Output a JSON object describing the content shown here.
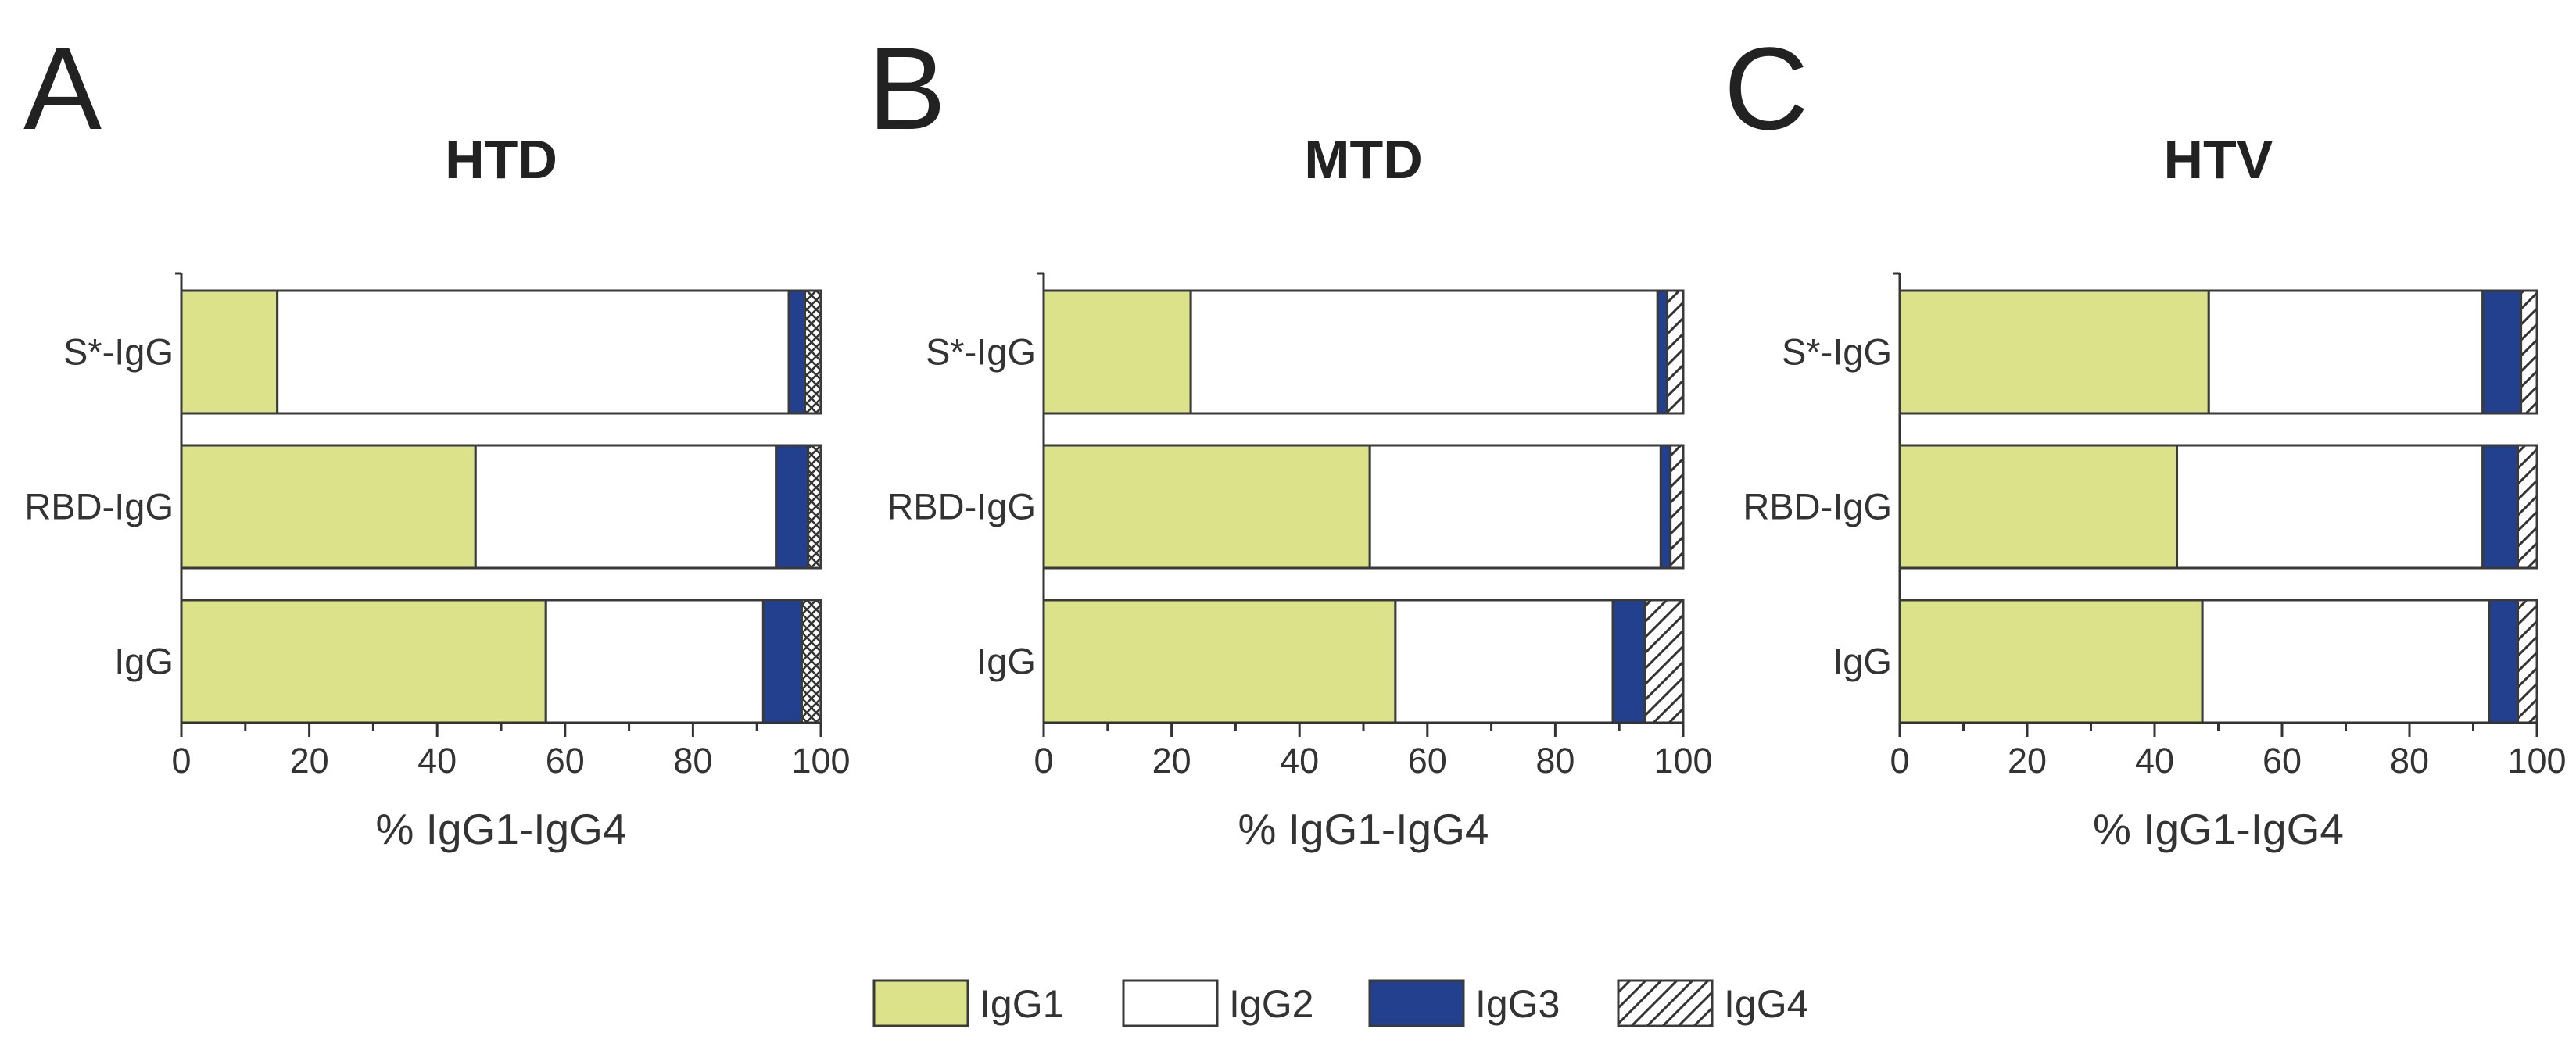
{
  "colors": {
    "IgG1": "#dbe28a",
    "IgG2": "#ffffff",
    "IgG3": "#23408e",
    "outline": "#3a3a3a"
  },
  "legend": {
    "items": [
      {
        "label": "IgG1",
        "fill": "IgG1"
      },
      {
        "label": "IgG2",
        "fill": "IgG2"
      },
      {
        "label": "IgG3",
        "fill": "IgG3"
      },
      {
        "label": "IgG4",
        "fill": "hatch"
      }
    ]
  },
  "chart_data": [
    {
      "panel": "A",
      "type": "bar",
      "stacked": true,
      "orientation": "horizontal",
      "title": "HTD",
      "xlabel": "% IgG1-IgG4",
      "xlim": [
        0,
        100
      ],
      "xticks": [
        0,
        20,
        40,
        60,
        80,
        100
      ],
      "ig4_pattern": "crosshatch",
      "categories": [
        "S*-IgG",
        "RBD-IgG",
        "IgG"
      ],
      "series": [
        {
          "name": "IgG1",
          "values": [
            15,
            46,
            57
          ]
        },
        {
          "name": "IgG2",
          "values": [
            80,
            47,
            34
          ]
        },
        {
          "name": "IgG3",
          "values": [
            2.5,
            5,
            6
          ]
        },
        {
          "name": "IgG4",
          "values": [
            2.5,
            2,
            3
          ]
        }
      ]
    },
    {
      "panel": "B",
      "type": "bar",
      "stacked": true,
      "orientation": "horizontal",
      "title": "MTD",
      "xlabel": "% IgG1-IgG4",
      "xlim": [
        0,
        100
      ],
      "xticks": [
        0,
        20,
        40,
        60,
        80,
        100
      ],
      "ig4_pattern": "diagonal",
      "categories": [
        "S*-IgG",
        "RBD-IgG",
        "IgG"
      ],
      "series": [
        {
          "name": "IgG1",
          "values": [
            23,
            51,
            55
          ]
        },
        {
          "name": "IgG2",
          "values": [
            73,
            45.5,
            34
          ]
        },
        {
          "name": "IgG3",
          "values": [
            1.5,
            1.5,
            5
          ]
        },
        {
          "name": "IgG4",
          "values": [
            2.5,
            2,
            6
          ]
        }
      ]
    },
    {
      "panel": "C",
      "type": "bar",
      "stacked": true,
      "orientation": "horizontal",
      "title": "HTV",
      "xlabel": "% IgG1-IgG4",
      "xlim": [
        0,
        100
      ],
      "xticks": [
        0,
        20,
        40,
        60,
        80,
        100
      ],
      "ig4_pattern": "diagonal",
      "categories": [
        "S*-IgG",
        "RBD-IgG",
        "IgG"
      ],
      "series": [
        {
          "name": "IgG1",
          "values": [
            48.5,
            43.5,
            47.5
          ]
        },
        {
          "name": "IgG2",
          "values": [
            43,
            48,
            45
          ]
        },
        {
          "name": "IgG3",
          "values": [
            6,
            5.5,
            4.5
          ]
        },
        {
          "name": "IgG4",
          "values": [
            2.5,
            3,
            3
          ]
        }
      ]
    }
  ]
}
